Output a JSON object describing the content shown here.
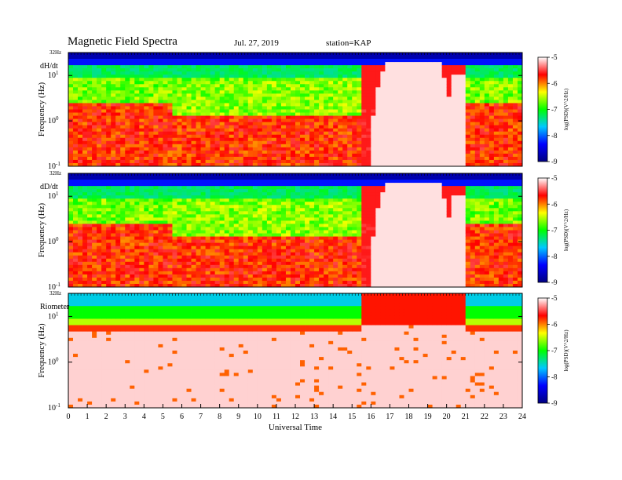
{
  "header": {
    "title": "Magnetic  Field  Spectra",
    "date": "Jul.  27, 2019",
    "station": "station=KAP"
  },
  "colors": {
    "colormap": [
      "#000080",
      "#0000ff",
      "#00c8ff",
      "#00ff00",
      "#ffff00",
      "#ff0000",
      "#ffffff"
    ]
  },
  "chart_data": [
    {
      "type": "heatmap",
      "panel_label": "dH/dt",
      "ylabel": "Frequency  (Hz)",
      "y_top_label": "32Hz",
      "yticks": [
        {
          "base": "10",
          "exp": "-1",
          "value": 0.1
        },
        {
          "base": "10",
          "exp": "0",
          "value": 1
        },
        {
          "base": "10",
          "exp": "1",
          "value": 10
        }
      ],
      "y_scale": "log",
      "ylim": [
        0.1,
        32
      ],
      "xlim": [
        0,
        24
      ],
      "colorbar": {
        "label": "log(PSD)(V^2/Hz)",
        "range": [
          -9,
          -5
        ],
        "ticks": [
          "-5",
          "-6",
          "-7",
          "-8",
          "-9"
        ]
      }
    },
    {
      "type": "heatmap",
      "panel_label": "dD/dt",
      "ylabel": "Frequency  (Hz)",
      "y_top_label": "32Hz",
      "yticks": [
        {
          "base": "10",
          "exp": "-1",
          "value": 0.1
        },
        {
          "base": "10",
          "exp": "0",
          "value": 1
        },
        {
          "base": "10",
          "exp": "1",
          "value": 10
        }
      ],
      "y_scale": "log",
      "ylim": [
        0.1,
        32
      ],
      "xlim": [
        0,
        24
      ],
      "colorbar": {
        "label": "log(PSD)(V^2/Hz)",
        "range": [
          -9,
          -5
        ],
        "ticks": [
          "-5",
          "-6",
          "-7",
          "-8",
          "-9"
        ]
      }
    },
    {
      "type": "heatmap",
      "panel_label": "Riometer",
      "ylabel": "Frequency  (Hz)",
      "y_top_label": "32Hz",
      "yticks": [
        {
          "base": "10",
          "exp": "-1",
          "value": 0.1
        },
        {
          "base": "10",
          "exp": "0",
          "value": 1
        },
        {
          "base": "10",
          "exp": "1",
          "value": 10
        }
      ],
      "y_scale": "log",
      "ylim": [
        0.1,
        32
      ],
      "xlim": [
        0,
        24
      ],
      "xlabel": "Universal Time",
      "xticks": [
        "0",
        "1",
        "2",
        "3",
        "4",
        "5",
        "6",
        "7",
        "8",
        "9",
        "10",
        "11",
        "12",
        "13",
        "14",
        "15",
        "16",
        "17",
        "18",
        "19",
        "20",
        "21",
        "22",
        "23",
        "24"
      ],
      "colorbar": {
        "label": "log(PSD)(V^2/Hz)",
        "range": [
          -9,
          -5
        ],
        "ticks": [
          "-5",
          "-6",
          "-7",
          "-8",
          "-9"
        ]
      }
    }
  ]
}
